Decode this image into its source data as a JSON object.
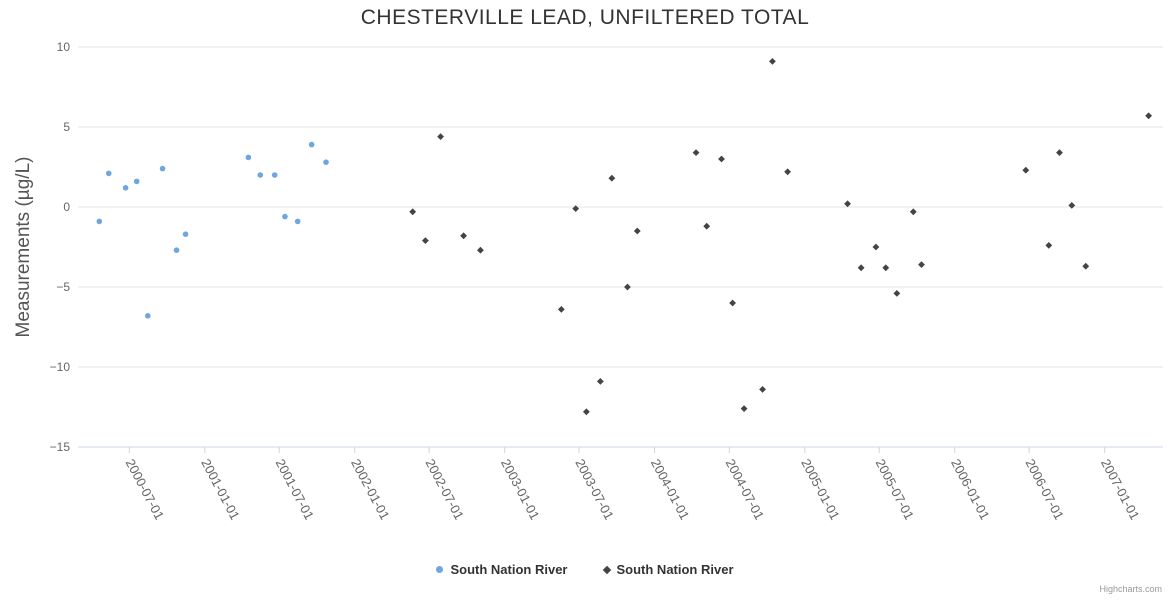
{
  "chart": {
    "credit": "Highcharts.com",
    "background": "#ffffff",
    "grid_color": "#e6e6e6",
    "axis_line_color": "#ccd6eb",
    "label_color": "#666666"
  },
  "chart_data": {
    "type": "scatter",
    "title": "CHESTERVILLE LEAD, UNFILTERED TOTAL",
    "xlabel": "",
    "ylabel": "Measurements (µg/L)",
    "ylim": [
      -15,
      10
    ],
    "y_ticks": [
      10,
      5,
      0,
      -5,
      -10,
      -15
    ],
    "x_tick_labels": [
      "2000-07-01",
      "2001-01-01",
      "2001-07-01",
      "2002-01-01",
      "2002-07-01",
      "2003-01-01",
      "2003-07-01",
      "2004-01-01",
      "2004-07-01",
      "2005-01-01",
      "2005-07-01",
      "2006-01-01",
      "2006-07-01",
      "2007-01-01"
    ],
    "grid": "horizontal",
    "legend_position": "bottom-center",
    "series": [
      {
        "name": "South Nation River",
        "marker": "circle",
        "color": "#6fa6de",
        "data": [
          [
            "2000-04-19",
            -0.9
          ],
          [
            "2000-05-12",
            2.1
          ],
          [
            "2000-06-22",
            1.2
          ],
          [
            "2000-07-19",
            1.6
          ],
          [
            "2000-08-15",
            -6.8
          ],
          [
            "2000-09-20",
            2.4
          ],
          [
            "2000-10-24",
            -2.7
          ],
          [
            "2000-11-15",
            -1.7
          ],
          [
            "2001-04-17",
            3.1
          ],
          [
            "2001-05-16",
            2.0
          ],
          [
            "2001-06-20",
            2.0
          ],
          [
            "2001-07-15",
            -0.6
          ],
          [
            "2001-08-15",
            -0.9
          ],
          [
            "2001-09-18",
            3.9
          ],
          [
            "2001-10-23",
            2.8
          ]
        ]
      },
      {
        "name": "South Nation River",
        "marker": "diamond",
        "color": "#434348",
        "data": [
          [
            "2002-05-22",
            -0.3
          ],
          [
            "2002-06-22",
            -2.1
          ],
          [
            "2002-07-29",
            4.4
          ],
          [
            "2002-09-23",
            -1.8
          ],
          [
            "2002-11-03",
            -2.7
          ],
          [
            "2003-05-19",
            -6.4
          ],
          [
            "2003-06-23",
            -0.1
          ],
          [
            "2003-07-19",
            -12.8
          ],
          [
            "2003-08-22",
            -10.9
          ],
          [
            "2003-09-19",
            1.8
          ],
          [
            "2003-10-27",
            -5.0
          ],
          [
            "2003-11-20",
            -1.5
          ],
          [
            "2004-04-11",
            3.4
          ],
          [
            "2004-05-07",
            -1.2
          ],
          [
            "2004-06-12",
            3.0
          ],
          [
            "2004-07-09",
            -6.0
          ],
          [
            "2004-08-06",
            -12.6
          ],
          [
            "2004-09-20",
            -11.4
          ],
          [
            "2004-10-14",
            9.1
          ],
          [
            "2004-11-20",
            2.2
          ],
          [
            "2005-04-15",
            0.2
          ],
          [
            "2005-05-18",
            -3.8
          ],
          [
            "2005-06-23",
            -2.5
          ],
          [
            "2005-07-17",
            -3.8
          ],
          [
            "2005-08-13",
            -5.4
          ],
          [
            "2005-09-22",
            -0.3
          ],
          [
            "2005-10-12",
            -3.6
          ],
          [
            "2006-06-23",
            2.3
          ],
          [
            "2006-08-18",
            -2.4
          ],
          [
            "2006-09-13",
            3.4
          ],
          [
            "2006-10-13",
            0.1
          ],
          [
            "2006-11-16",
            -3.7
          ],
          [
            "2007-04-18",
            5.7
          ]
        ]
      }
    ]
  }
}
